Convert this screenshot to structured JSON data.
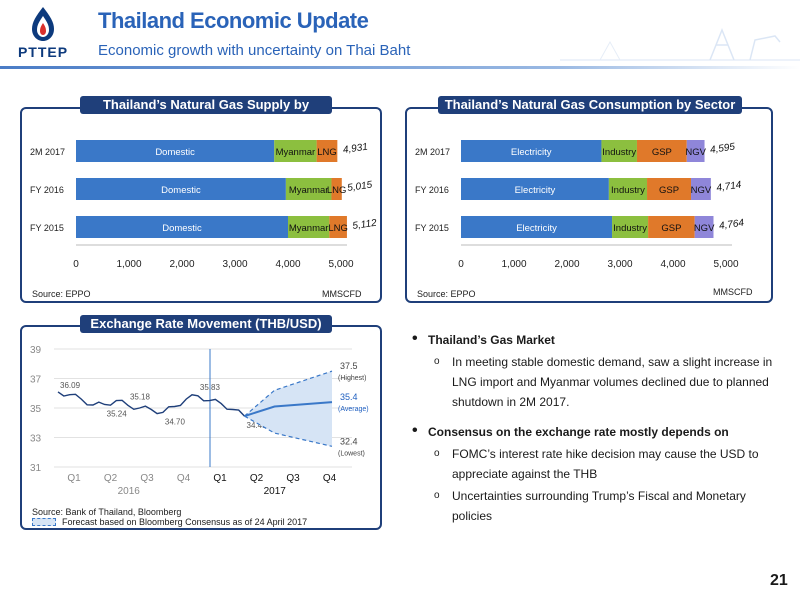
{
  "header": {
    "logo_text": "PTTEP",
    "title": "Thailand Economic Update",
    "subtitle": "Economic growth with uncertainty on Thai Baht"
  },
  "colors": {
    "navy": "#1f3f7a",
    "domestic": "#3a78c8",
    "myanmar": "#8cbf3f",
    "lng": "#e0792a",
    "ngv": "#8f86d9",
    "title_blue": "#2a63b8"
  },
  "supply_panel": {
    "title": "Thailand’s Natural Gas Supply by Source",
    "source": "Source: EPPO",
    "unit": "MMSCFD"
  },
  "consumption_panel": {
    "title": "Thailand’s Natural Gas Consumption by Sector",
    "source": "Source: EPPO",
    "unit": "MMSCFD"
  },
  "fx_panel": {
    "title": "Exchange Rate Movement (THB/USD)",
    "source": "Source: Bank of Thailand, Bloomberg",
    "forecast_note": "Forecast based on Bloomberg Consensus as of 24 April 2017",
    "forecast_icon": "dashed-box-icon"
  },
  "bullets": {
    "b1": "Thailand’s Gas Market",
    "b1_sub1": "In meeting stable domestic demand, saw a slight increase in LNG import and Myanmar volumes declined due to planned shutdown in 2M 2017.",
    "b2": "Consensus on the exchange rate mostly depends on",
    "b2_sub1": "FOMC’s interest rate hike decision may cause the USD to appreciate against the THB",
    "b2_sub2": "Uncertainties surrounding Trump’s Fiscal and Monetary policies"
  },
  "page_number": "21",
  "chart_data": [
    {
      "type": "bar",
      "orientation": "horizontal",
      "stacked": true,
      "categories": [
        "2M 2017",
        "FY 2016",
        "FY 2015"
      ],
      "series": [
        {
          "name": "Domestic",
          "values": [
            3740,
            3960,
            4000
          ]
        },
        {
          "name": "Myanmar",
          "values": [
            800,
            860,
            780
          ]
        },
        {
          "name": "LNG",
          "values": [
            391,
            195,
            332
          ]
        }
      ],
      "totals": [
        "4,931",
        "5,015",
        "5,112"
      ],
      "xlim": [
        0,
        5000
      ],
      "ticks": [
        "0",
        "1,000",
        "2,000",
        "3,000",
        "4,000",
        "5,000"
      ]
    },
    {
      "type": "bar",
      "orientation": "horizontal",
      "stacked": true,
      "categories": [
        "2M 2017",
        "FY 2016",
        "FY 2015"
      ],
      "series": [
        {
          "name": "Electricity",
          "values": [
            2650,
            2790,
            2850
          ]
        },
        {
          "name": "Industry",
          "values": [
            670,
            720,
            680
          ]
        },
        {
          "name": "GSP",
          "values": [
            940,
            830,
            880
          ]
        },
        {
          "name": "NGV",
          "values": [
            335,
            374,
            354
          ]
        }
      ],
      "totals": [
        "4,595",
        "4,714",
        "4,764"
      ],
      "xlim": [
        0,
        5000
      ],
      "ticks": [
        "0",
        "1,000",
        "2,000",
        "3,000",
        "4,000",
        "5,000"
      ]
    },
    {
      "type": "line",
      "ylim": [
        31,
        39
      ],
      "yticks": [
        "39",
        "37",
        "35",
        "33",
        "31"
      ],
      "quarters": [
        "Q1",
        "Q2",
        "Q3",
        "Q4",
        "Q1",
        "Q2",
        "Q3",
        "Q4"
      ],
      "years": [
        "2016",
        "2017"
      ],
      "historical": [
        36.09,
        35.9,
        35.6,
        35.2,
        35.24,
        35.5,
        35.18,
        35.0,
        34.9,
        34.7,
        35.1,
        35.6,
        35.83,
        35.5,
        35.3,
        34.9,
        34.45
      ],
      "annotations": [
        "36.09",
        "35.24",
        "35.18",
        "34.70",
        "35.83",
        "34.45"
      ],
      "forecast": {
        "highest": {
          "value": "37.5",
          "label": "(Highest)"
        },
        "average": {
          "value": "35.4",
          "label": "(Average)"
        },
        "lowest": {
          "value": "32.4",
          "label": "(Lowest)"
        }
      }
    }
  ]
}
